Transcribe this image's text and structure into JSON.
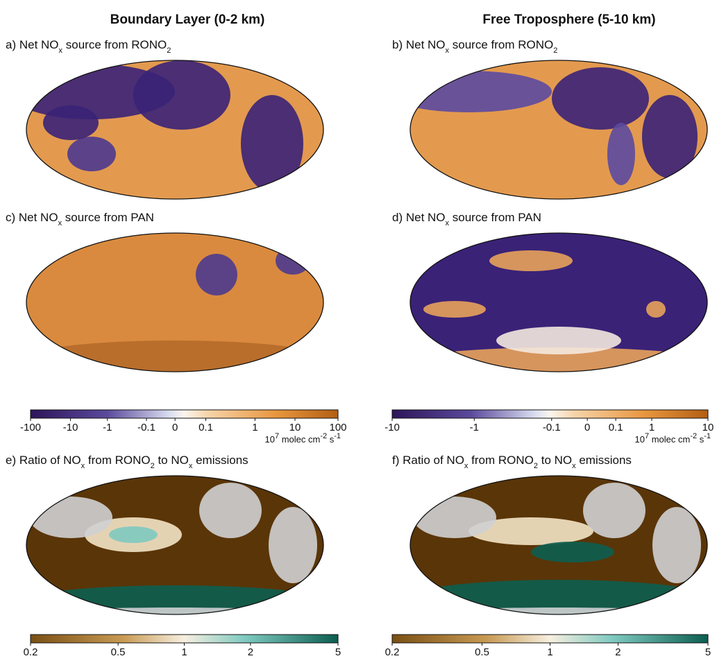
{
  "columns": [
    "Boundary Layer (0-2 km)",
    "Free Troposphere (5-10 km)"
  ],
  "panels": [
    {
      "title": [
        "a) Net NO",
        "x",
        " source from RONO",
        "2"
      ]
    },
    {
      "title": [
        "b) Net NO",
        "x",
        " source from RONO",
        "2"
      ]
    },
    {
      "title": [
        "c) Net NO",
        "x",
        " source from PAN"
      ]
    },
    {
      "title": [
        "d) Net NO",
        "x",
        " source from PAN"
      ]
    },
    {
      "title": [
        "e) Ratio of NO",
        "x",
        " from RONO",
        "2",
        " to NO",
        "x",
        " emissions"
      ]
    },
    {
      "title": [
        "f) Ratio of NO",
        "x",
        " from RONO",
        "2",
        " to NO",
        "x",
        " emissions"
      ]
    }
  ],
  "colorbars": [
    {
      "ticks": [
        -100,
        -10,
        -1,
        -0.1,
        0,
        0.1,
        1,
        10,
        100
      ],
      "unit": [
        "10",
        "7",
        " molec cm",
        "-2",
        " s",
        "-1"
      ]
    },
    {
      "ticks": [
        -10,
        -1,
        -0.1,
        0,
        0.1,
        1,
        10
      ],
      "unit": [
        "10",
        "7",
        " molec cm",
        "-2",
        " s",
        "-1"
      ]
    },
    {
      "ticks": [
        0.2,
        0.5,
        1,
        2,
        5
      ],
      "lim": [
        0.2,
        5
      ],
      "log": true
    },
    {
      "ticks": [
        0.2,
        0.5,
        1,
        2,
        5
      ],
      "lim": [
        0.2,
        5
      ],
      "log": true
    }
  ]
}
